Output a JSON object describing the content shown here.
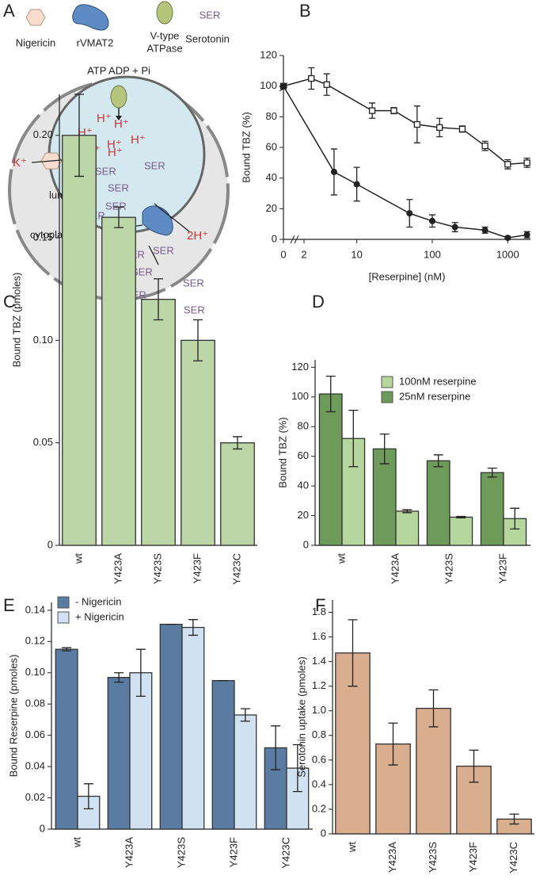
{
  "diagram": {
    "letter": "A",
    "legend": [
      "Nigericin",
      "rVMAT2",
      "V-type",
      "ATPase",
      "SER",
      "Serotonin"
    ],
    "reaction": "ATP ADP + Pi",
    "protons": [
      "H⁺",
      "H⁺",
      "H⁺",
      "H⁺",
      "H⁺",
      "H⁺",
      "H⁺",
      "H⁺"
    ],
    "potassium": "K⁺",
    "lumen": "lumen",
    "cytoplasm": "cytoplasm",
    "released": "2H⁺",
    "serotonin": [
      "SER",
      "SER",
      "SER",
      "SER",
      "SER",
      "SER",
      "SER",
      "SER",
      "SER",
      "SER",
      "SER"
    ]
  },
  "chart_data": [
    {
      "type": "line",
      "panel_label": "B",
      "xlabel": "[Reserpine] (nM)",
      "ylabel": "Bound TBZ (%)",
      "x_scale": "log",
      "axis_break": true,
      "xlim": [
        0,
        2000
      ],
      "xticks": [
        0,
        2,
        10,
        100,
        1000
      ],
      "ylim": [
        0,
        120
      ],
      "yticks": [
        0,
        20,
        40,
        60,
        80,
        100,
        120
      ],
      "series": [
        {
          "marker": "open-square",
          "color": "#222222",
          "x": [
            0,
            2.5,
            4,
            16,
            31,
            63,
            125,
            250,
            500,
            1000,
            1800
          ],
          "values": [
            100,
            105,
            101,
            84,
            84,
            75,
            73,
            72,
            61,
            49,
            50
          ],
          "errors": [
            0,
            7,
            7,
            5,
            2,
            12,
            6,
            2,
            3,
            3,
            3
          ]
        },
        {
          "marker": "filled-circle",
          "color": "#222222",
          "x": [
            0,
            5,
            10,
            50,
            100,
            200,
            500,
            1000,
            1800
          ],
          "values": [
            100,
            44,
            36,
            17,
            12,
            8,
            6,
            1,
            3
          ],
          "errors": [
            0,
            15,
            11,
            9,
            4,
            3,
            2,
            1,
            2
          ]
        }
      ]
    },
    {
      "type": "bar",
      "panel_label": "C",
      "ylabel": "Bound TBZ (pmoles)",
      "categories": [
        "wt",
        "Y423A",
        "Y423S",
        "Y423F",
        "Y423C"
      ],
      "values": [
        0.2,
        0.16,
        0.12,
        0.1,
        0.05
      ],
      "errors": [
        0.02,
        0.005,
        0.01,
        0.01,
        0.003
      ],
      "color": "#bcd6a8",
      "ylim": [
        0,
        0.22
      ],
      "yticks": [
        0,
        0.05,
        {
          "value": 0.1,
          "label": "0.10"
        },
        0.15,
        {
          "value": 0.2,
          "label": "0.20"
        }
      ]
    },
    {
      "type": "bar",
      "panel_label": "D",
      "ylabel": "Bound TBZ (%)",
      "categories": [
        "wt",
        "Y423A",
        "Y423S",
        "Y423F"
      ],
      "legend": "upper right",
      "legend_reversed": true,
      "series": [
        {
          "name": "25nM reserpine",
          "color": "#6e9b5a",
          "values": [
            102,
            65,
            57,
            49
          ],
          "errors": [
            12,
            10,
            4,
            3
          ]
        },
        {
          "name": "100nM reserpine",
          "color": "#b5d69c",
          "values": [
            72,
            23,
            19,
            18
          ],
          "errors": [
            19,
            1,
            0.5,
            7
          ]
        }
      ],
      "ylim": [
        0,
        125
      ],
      "yticks": [
        0,
        20,
        40,
        60,
        80,
        100,
        120
      ]
    },
    {
      "type": "bar",
      "panel_label": "E",
      "ylabel": "Bound Reserpine (pmoles)",
      "categories": [
        "wt",
        "Y423A",
        "Y423S",
        "Y423F",
        "Y423C"
      ],
      "legend": "upper left",
      "series": [
        {
          "name": "- Nigericin",
          "color": "#5a7ba2",
          "values": [
            0.115,
            0.097,
            0.131,
            0.095,
            0.052
          ],
          "errors": [
            0.001,
            0.003,
            0,
            0,
            0.014
          ]
        },
        {
          "name": "+ Nigericin",
          "color": "#d0e2f2",
          "values": [
            0.021,
            0.1,
            0.129,
            0.073,
            0.039
          ],
          "errors": [
            0.008,
            0.015,
            0.005,
            0.004,
            0.015
          ]
        }
      ],
      "ylim": [
        0,
        0.145
      ],
      "yticks": [
        0,
        0.02,
        0.04,
        0.06,
        0.08,
        {
          "value": 0.1,
          "label": "0.10"
        },
        0.12,
        0.14
      ]
    },
    {
      "type": "bar",
      "panel_label": "F",
      "ylabel": "Serotonin uptake (pmoles)",
      "categories": [
        "wt",
        "Y423A",
        "Y423S",
        "Y423F",
        "Y423C"
      ],
      "values": [
        1.47,
        0.73,
        1.02,
        0.55,
        0.12
      ],
      "errors": [
        0.27,
        0.17,
        0.15,
        0.13,
        0.04
      ],
      "color": "#d9ae8f",
      "ylim": [
        0,
        1.9
      ],
      "yticks": [
        0,
        0.2,
        0.4,
        0.6,
        0.8,
        {
          "value": 1,
          "label": "1.0"
        },
        1.2,
        1.4,
        1.6,
        1.8
      ]
    }
  ]
}
